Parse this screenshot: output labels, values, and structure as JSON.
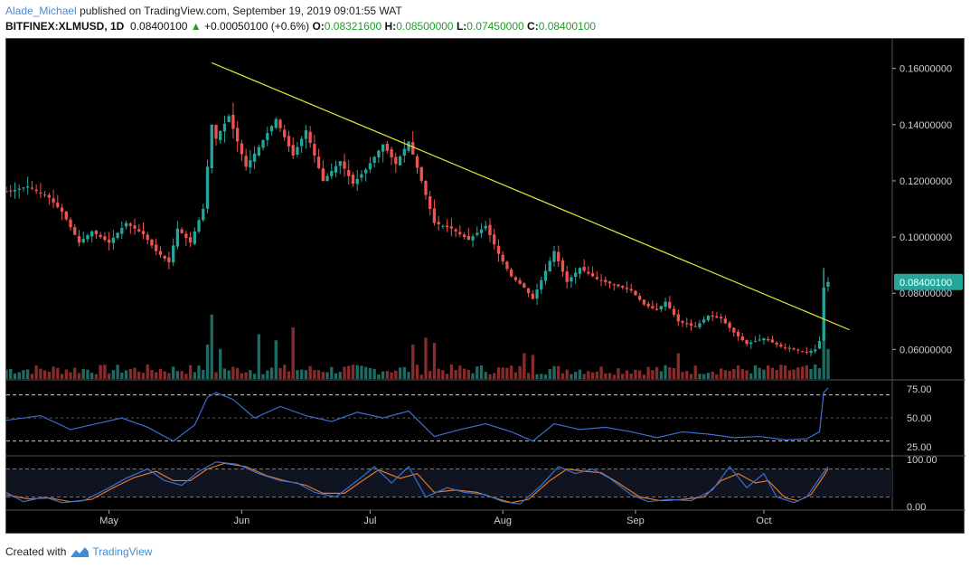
{
  "header": {
    "author": "Alade_Michael",
    "published_text": "published on TradingView.com, September 19, 2019 09:01:55 WAT"
  },
  "symbol_bar": {
    "symbol": "BITFINEX:XLMUSD, 1D",
    "last": "0.08400100",
    "arrow": "▲",
    "change": "+0.00050100 (+0.6%)",
    "o_label": "O:",
    "o": "0.08321600",
    "h_label": "H:",
    "h": "0.08500000",
    "l_label": "L:",
    "l": "0.07450000",
    "c_label": "C:",
    "c": "0.08400100"
  },
  "footer": {
    "created_with": "Created with",
    "brand": "TradingView"
  },
  "colors": {
    "up": "#26a69a",
    "down": "#ef5350",
    "trendline": "#e8e83a",
    "rsi": "#3a6fd0",
    "stoch_k": "#3a6fd0",
    "stoch_d": "#e0792a",
    "price_tag": "#26a69a",
    "vol_up": "#1d6b62",
    "vol_down": "#8a2b2b"
  },
  "chart_data": {
    "type": "candlestick",
    "time_axis": {
      "start_date": "2019-04-07",
      "end_date": "2019-10-31",
      "month_labels": [
        {
          "label": "May",
          "date": "2019-05-01"
        },
        {
          "label": "Jun",
          "date": "2019-06-01"
        },
        {
          "label": "Jul",
          "date": "2019-07-01"
        },
        {
          "label": "Aug",
          "date": "2019-08-01"
        },
        {
          "label": "Sep",
          "date": "2019-09-01"
        },
        {
          "label": "Oct",
          "date": "2019-10-01"
        }
      ]
    },
    "price_axis": {
      "range": [
        0.0495,
        0.1705
      ],
      "ticks": [
        "0.16000000",
        "0.14000000",
        "0.12000000",
        "0.10000000",
        "0.08000000",
        "0.06000000"
      ],
      "tick_values": [
        0.16,
        0.14,
        0.12,
        0.1,
        0.08,
        0.06
      ],
      "last_price_label": "0.08400100",
      "last_price": 0.084001
    },
    "close_path": [
      {
        "date": "2019-04-07",
        "close": 0.116
      },
      {
        "date": "2019-04-12",
        "close": 0.118
      },
      {
        "date": "2019-04-17",
        "close": 0.114
      },
      {
        "date": "2019-04-20",
        "close": 0.109
      },
      {
        "date": "2019-04-24",
        "close": 0.098
      },
      {
        "date": "2019-04-27",
        "close": 0.102
      },
      {
        "date": "2019-05-01",
        "close": 0.098
      },
      {
        "date": "2019-05-05",
        "close": 0.105
      },
      {
        "date": "2019-05-09",
        "close": 0.101
      },
      {
        "date": "2019-05-12",
        "close": 0.095
      },
      {
        "date": "2019-05-15",
        "close": 0.091
      },
      {
        "date": "2019-05-17",
        "close": 0.103
      },
      {
        "date": "2019-05-20",
        "close": 0.098
      },
      {
        "date": "2019-05-23",
        "close": 0.11
      },
      {
        "date": "2019-05-25",
        "close": 0.14
      },
      {
        "date": "2019-05-26",
        "close": 0.135
      },
      {
        "date": "2019-05-29",
        "close": 0.143
      },
      {
        "date": "2019-06-02",
        "close": 0.125
      },
      {
        "date": "2019-06-05",
        "close": 0.132
      },
      {
        "date": "2019-06-09",
        "close": 0.142
      },
      {
        "date": "2019-06-13",
        "close": 0.129
      },
      {
        "date": "2019-06-16",
        "close": 0.138
      },
      {
        "date": "2019-06-20",
        "close": 0.12
      },
      {
        "date": "2019-06-24",
        "close": 0.127
      },
      {
        "date": "2019-06-27",
        "close": 0.119
      },
      {
        "date": "2019-06-30",
        "close": 0.124
      },
      {
        "date": "2019-07-04",
        "close": 0.133
      },
      {
        "date": "2019-07-07",
        "close": 0.126
      },
      {
        "date": "2019-07-10",
        "close": 0.134
      },
      {
        "date": "2019-07-13",
        "close": 0.12
      },
      {
        "date": "2019-07-16",
        "close": 0.105
      },
      {
        "date": "2019-07-20",
        "close": 0.103
      },
      {
        "date": "2019-07-24",
        "close": 0.099
      },
      {
        "date": "2019-07-28",
        "close": 0.104
      },
      {
        "date": "2019-07-31",
        "close": 0.094
      },
      {
        "date": "2019-08-03",
        "close": 0.086
      },
      {
        "date": "2019-08-06",
        "close": 0.082
      },
      {
        "date": "2019-08-08",
        "close": 0.078
      },
      {
        "date": "2019-08-11",
        "close": 0.088
      },
      {
        "date": "2019-08-13",
        "close": 0.095
      },
      {
        "date": "2019-08-16",
        "close": 0.084
      },
      {
        "date": "2019-08-19",
        "close": 0.089
      },
      {
        "date": "2019-08-23",
        "close": 0.085
      },
      {
        "date": "2019-08-27",
        "close": 0.083
      },
      {
        "date": "2019-08-31",
        "close": 0.081
      },
      {
        "date": "2019-09-03",
        "close": 0.076
      },
      {
        "date": "2019-09-06",
        "close": 0.074
      },
      {
        "date": "2019-09-08",
        "close": 0.077
      },
      {
        "date": "2019-09-11",
        "close": 0.07
      },
      {
        "date": "2019-09-15",
        "close": 0.068
      },
      {
        "date": "2019-09-18",
        "close": 0.072
      },
      {
        "date": "2019-09-21",
        "close": 0.071
      },
      {
        "date": "2019-09-24",
        "close": 0.066
      },
      {
        "date": "2019-09-27",
        "close": 0.062
      },
      {
        "date": "2019-10-01",
        "close": 0.064
      },
      {
        "date": "2019-10-05",
        "close": 0.061
      },
      {
        "date": "2019-10-08",
        "close": 0.06
      },
      {
        "date": "2019-10-11",
        "close": 0.059
      },
      {
        "date": "2019-10-13",
        "close": 0.06
      },
      {
        "date": "2019-10-14",
        "close": 0.063
      },
      {
        "date": "2019-10-15",
        "close": 0.082
      },
      {
        "date": "2019-10-16",
        "close": 0.084
      }
    ],
    "trendline": {
      "from": {
        "date": "2019-05-25",
        "price": 0.162
      },
      "to": {
        "date": "2019-10-21",
        "price": 0.067
      }
    },
    "volume": {
      "bars_every_days": 1,
      "spikes": [
        {
          "date": "2019-05-24",
          "value": 0.4
        },
        {
          "date": "2019-05-25",
          "value": 0.75
        },
        {
          "date": "2019-05-27",
          "value": 0.35
        },
        {
          "date": "2019-06-05",
          "value": 0.52
        },
        {
          "date": "2019-06-09",
          "value": 0.45
        },
        {
          "date": "2019-06-13",
          "value": 0.6
        },
        {
          "date": "2019-07-11",
          "value": 0.4
        },
        {
          "date": "2019-07-14",
          "value": 0.48
        },
        {
          "date": "2019-07-16",
          "value": 0.42
        },
        {
          "date": "2019-08-06",
          "value": 0.3
        },
        {
          "date": "2019-08-08",
          "value": 0.28
        },
        {
          "date": "2019-09-11",
          "value": 0.3
        },
        {
          "date": "2019-10-15",
          "value": 0.5
        },
        {
          "date": "2019-10-16",
          "value": 0.35
        }
      ]
    },
    "rsi": {
      "ticks": [
        "75.00",
        "50.00",
        "25.00"
      ],
      "tick_values": [
        75,
        50,
        25
      ],
      "range": [
        18,
        83
      ],
      "bands": [
        70,
        30
      ],
      "points": [
        {
          "date": "2019-04-07",
          "value": 48
        },
        {
          "date": "2019-04-15",
          "value": 52
        },
        {
          "date": "2019-04-22",
          "value": 40
        },
        {
          "date": "2019-04-28",
          "value": 45
        },
        {
          "date": "2019-05-04",
          "value": 50
        },
        {
          "date": "2019-05-10",
          "value": 42
        },
        {
          "date": "2019-05-16",
          "value": 30
        },
        {
          "date": "2019-05-21",
          "value": 44
        },
        {
          "date": "2019-05-24",
          "value": 68
        },
        {
          "date": "2019-05-26",
          "value": 72
        },
        {
          "date": "2019-05-30",
          "value": 66
        },
        {
          "date": "2019-06-04",
          "value": 50
        },
        {
          "date": "2019-06-10",
          "value": 60
        },
        {
          "date": "2019-06-16",
          "value": 52
        },
        {
          "date": "2019-06-22",
          "value": 47
        },
        {
          "date": "2019-06-28",
          "value": 55
        },
        {
          "date": "2019-07-04",
          "value": 50
        },
        {
          "date": "2019-07-10",
          "value": 56
        },
        {
          "date": "2019-07-16",
          "value": 34
        },
        {
          "date": "2019-07-22",
          "value": 40
        },
        {
          "date": "2019-07-28",
          "value": 45
        },
        {
          "date": "2019-08-03",
          "value": 38
        },
        {
          "date": "2019-08-08",
          "value": 30
        },
        {
          "date": "2019-08-13",
          "value": 45
        },
        {
          "date": "2019-08-19",
          "value": 40
        },
        {
          "date": "2019-08-25",
          "value": 42
        },
        {
          "date": "2019-08-31",
          "value": 38
        },
        {
          "date": "2019-09-06",
          "value": 33
        },
        {
          "date": "2019-09-12",
          "value": 38
        },
        {
          "date": "2019-09-18",
          "value": 36
        },
        {
          "date": "2019-09-24",
          "value": 33
        },
        {
          "date": "2019-09-30",
          "value": 34
        },
        {
          "date": "2019-10-06",
          "value": 31
        },
        {
          "date": "2019-10-11",
          "value": 32
        },
        {
          "date": "2019-10-14",
          "value": 38
        },
        {
          "date": "2019-10-15",
          "value": 72
        },
        {
          "date": "2019-10-16",
          "value": 76
        }
      ]
    },
    "stochastic": {
      "ticks": [
        "100.00",
        "0.00"
      ],
      "tick_values": [
        100,
        0
      ],
      "range": [
        -8,
        108
      ],
      "bands": [
        80,
        20
      ],
      "k_points": [
        {
          "date": "2019-04-07",
          "value": 30
        },
        {
          "date": "2019-04-11",
          "value": 10
        },
        {
          "date": "2019-04-16",
          "value": 20
        },
        {
          "date": "2019-04-20",
          "value": 8
        },
        {
          "date": "2019-04-25",
          "value": 12
        },
        {
          "date": "2019-04-30",
          "value": 35
        },
        {
          "date": "2019-05-05",
          "value": 60
        },
        {
          "date": "2019-05-10",
          "value": 80
        },
        {
          "date": "2019-05-14",
          "value": 55
        },
        {
          "date": "2019-05-18",
          "value": 45
        },
        {
          "date": "2019-05-22",
          "value": 75
        },
        {
          "date": "2019-05-26",
          "value": 95
        },
        {
          "date": "2019-05-31",
          "value": 90
        },
        {
          "date": "2019-06-05",
          "value": 70
        },
        {
          "date": "2019-06-10",
          "value": 55
        },
        {
          "date": "2019-06-14",
          "value": 50
        },
        {
          "date": "2019-06-18",
          "value": 30
        },
        {
          "date": "2019-06-23",
          "value": 20
        },
        {
          "date": "2019-06-28",
          "value": 55
        },
        {
          "date": "2019-07-02",
          "value": 85
        },
        {
          "date": "2019-07-06",
          "value": 50
        },
        {
          "date": "2019-07-10",
          "value": 85
        },
        {
          "date": "2019-07-14",
          "value": 20
        },
        {
          "date": "2019-07-19",
          "value": 40
        },
        {
          "date": "2019-07-23",
          "value": 30
        },
        {
          "date": "2019-07-28",
          "value": 25
        },
        {
          "date": "2019-08-01",
          "value": 10
        },
        {
          "date": "2019-08-05",
          "value": 5
        },
        {
          "date": "2019-08-10",
          "value": 45
        },
        {
          "date": "2019-08-14",
          "value": 85
        },
        {
          "date": "2019-08-18",
          "value": 70
        },
        {
          "date": "2019-08-22",
          "value": 80
        },
        {
          "date": "2019-08-26",
          "value": 60
        },
        {
          "date": "2019-08-31",
          "value": 25
        },
        {
          "date": "2019-09-04",
          "value": 10
        },
        {
          "date": "2019-09-09",
          "value": 15
        },
        {
          "date": "2019-09-14",
          "value": 12
        },
        {
          "date": "2019-09-19",
          "value": 35
        },
        {
          "date": "2019-09-23",
          "value": 85
        },
        {
          "date": "2019-09-27",
          "value": 40
        },
        {
          "date": "2019-10-01",
          "value": 70
        },
        {
          "date": "2019-10-04",
          "value": 20
        },
        {
          "date": "2019-10-08",
          "value": 8
        },
        {
          "date": "2019-10-11",
          "value": 20
        },
        {
          "date": "2019-10-14",
          "value": 60
        },
        {
          "date": "2019-10-16",
          "value": 85
        }
      ],
      "d_points": [
        {
          "date": "2019-04-07",
          "value": 25
        },
        {
          "date": "2019-04-12",
          "value": 16
        },
        {
          "date": "2019-04-17",
          "value": 18
        },
        {
          "date": "2019-04-22",
          "value": 10
        },
        {
          "date": "2019-04-27",
          "value": 15
        },
        {
          "date": "2019-05-02",
          "value": 40
        },
        {
          "date": "2019-05-07",
          "value": 62
        },
        {
          "date": "2019-05-12",
          "value": 75
        },
        {
          "date": "2019-05-16",
          "value": 55
        },
        {
          "date": "2019-05-20",
          "value": 55
        },
        {
          "date": "2019-05-24",
          "value": 80
        },
        {
          "date": "2019-05-28",
          "value": 92
        },
        {
          "date": "2019-06-02",
          "value": 85
        },
        {
          "date": "2019-06-07",
          "value": 65
        },
        {
          "date": "2019-06-11",
          "value": 55
        },
        {
          "date": "2019-06-16",
          "value": 45
        },
        {
          "date": "2019-06-20",
          "value": 28
        },
        {
          "date": "2019-06-25",
          "value": 28
        },
        {
          "date": "2019-06-30",
          "value": 60
        },
        {
          "date": "2019-07-03",
          "value": 78
        },
        {
          "date": "2019-07-08",
          "value": 60
        },
        {
          "date": "2019-07-12",
          "value": 70
        },
        {
          "date": "2019-07-16",
          "value": 30
        },
        {
          "date": "2019-07-21",
          "value": 35
        },
        {
          "date": "2019-07-26",
          "value": 30
        },
        {
          "date": "2019-07-30",
          "value": 18
        },
        {
          "date": "2019-08-03",
          "value": 8
        },
        {
          "date": "2019-08-07",
          "value": 15
        },
        {
          "date": "2019-08-12",
          "value": 55
        },
        {
          "date": "2019-08-16",
          "value": 80
        },
        {
          "date": "2019-08-20",
          "value": 75
        },
        {
          "date": "2019-08-24",
          "value": 72
        },
        {
          "date": "2019-08-28",
          "value": 50
        },
        {
          "date": "2019-09-02",
          "value": 20
        },
        {
          "date": "2019-09-07",
          "value": 12
        },
        {
          "date": "2019-09-12",
          "value": 15
        },
        {
          "date": "2019-09-17",
          "value": 20
        },
        {
          "date": "2019-09-21",
          "value": 55
        },
        {
          "date": "2019-09-25",
          "value": 70
        },
        {
          "date": "2019-09-29",
          "value": 50
        },
        {
          "date": "2019-10-02",
          "value": 55
        },
        {
          "date": "2019-10-06",
          "value": 18
        },
        {
          "date": "2019-10-09",
          "value": 12
        },
        {
          "date": "2019-10-12",
          "value": 25
        },
        {
          "date": "2019-10-15",
          "value": 65
        },
        {
          "date": "2019-10-16",
          "value": 80
        }
      ]
    }
  }
}
